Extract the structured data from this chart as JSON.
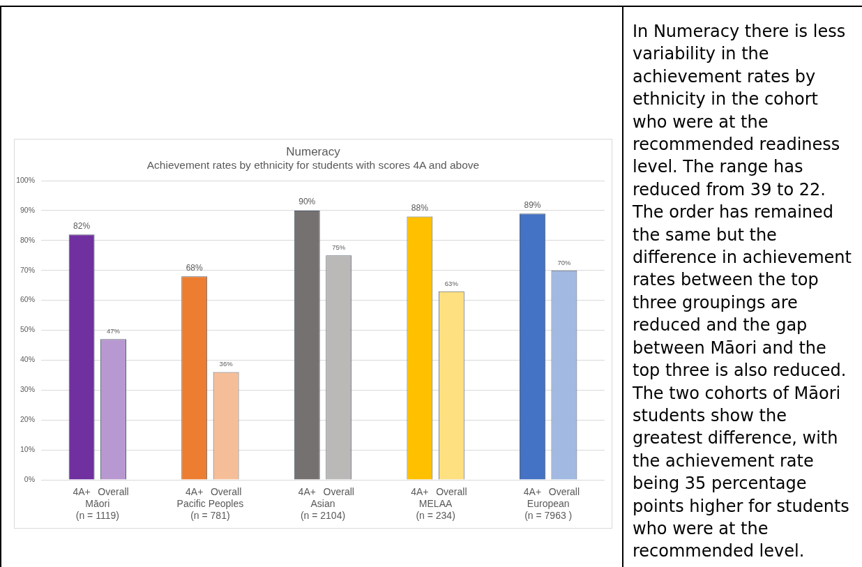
{
  "chart_data": {
    "type": "bar",
    "title": "Numeracy",
    "subtitle": "Achievement rates by ethnicity for students with scores 4A and above",
    "categories": [
      "Māori\n(n = 1119)",
      "Pacific Peoples\n(n = 781)",
      "Asian\n(n = 2104)",
      "MELAA\n(n = 234)",
      "European\n(n = 7963 )"
    ],
    "series": [
      {
        "name": "4A+",
        "colors": [
          "#7030a0",
          "#ed7d31",
          "#767171",
          "#ffc000",
          "#4472c4"
        ],
        "values": [
          82,
          68,
          90,
          88,
          89
        ],
        "value_labels": [
          "82%",
          "68%",
          "90%",
          "88%",
          "89%"
        ]
      },
      {
        "name": "Overall",
        "colors": [
          "#b898d0",
          "#f6be98",
          "#bbb8b8",
          "#ffe080",
          "#a2b9e2"
        ],
        "values": [
          47,
          36,
          75,
          63,
          70
        ],
        "value_labels": [
          "47%",
          "36%",
          "75%",
          "63%",
          "70%"
        ]
      }
    ],
    "ylim": [
      0,
      100
    ],
    "yticks": [
      {
        "value": 0,
        "label": "0%"
      },
      {
        "value": 10,
        "label": "10%"
      },
      {
        "value": 20,
        "label": "20%"
      },
      {
        "value": 30,
        "label": "30%"
      },
      {
        "value": 40,
        "label": "40%"
      },
      {
        "value": 50,
        "label": "50%"
      },
      {
        "value": 60,
        "label": "60%"
      },
      {
        "value": 70,
        "label": "70%"
      },
      {
        "value": 80,
        "label": "80%"
      },
      {
        "value": 90,
        "label": "90%"
      },
      {
        "value": 100,
        "label": "100%"
      }
    ],
    "grid": "y",
    "legend": false,
    "annotations": [
      "In Numeracy there is less variability in the achievement rates by ethnicity in the cohort who were at the recommended readiness level. The range has reduced from 39 to 22. The order has remained the same but the difference in achievement rates between the top three groupings are reduced and the gap between Māori and the top three is also reduced. The two cohorts of Māori students show the greatest difference, with the achievement rate being 35 percentage points higher for students who were at the recommended level."
    ]
  }
}
